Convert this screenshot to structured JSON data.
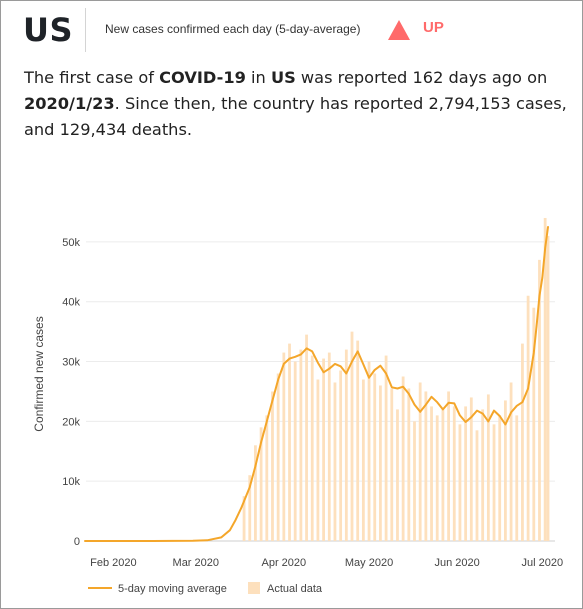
{
  "header": {
    "country": "US",
    "subtitle": "New cases confirmed each day (5-day-average)",
    "trend_label": "UP",
    "trend_color": "#ff6a6a"
  },
  "summary": {
    "p1": "The first case of ",
    "disease": "COVID-19",
    "p2": " in ",
    "country": "US",
    "p3": " was reported 162 days ago on ",
    "first_date": "2020/1/23",
    "p4": ". Since then, the country has reported 2,794,153 cases, and 129,434 deaths."
  },
  "colors": {
    "line": "#f4a62a",
    "bar": "#fde0bd",
    "grid": "#ececec",
    "axis_text": "#444444"
  },
  "chart_data": {
    "type": "line",
    "title": "",
    "xlabel": "",
    "ylabel": "Confirmed new cases",
    "x_start": "2020-01-22",
    "x_end": "2020-07-03",
    "ylim": [
      0,
      55000
    ],
    "yticks": [
      "0",
      "10k",
      "20k",
      "30k",
      "40k",
      "50k"
    ],
    "ytick_values": [
      0,
      10000,
      20000,
      30000,
      40000,
      50000
    ],
    "xticks": [
      "Feb 2020",
      "Mar 2020",
      "Apr 2020",
      "May 2020",
      "Jun 2020",
      "Jul 2020"
    ],
    "xtick_dates": [
      "2020-02-01",
      "2020-03-01",
      "2020-04-01",
      "2020-05-01",
      "2020-06-01",
      "2020-07-01"
    ],
    "legend_position": "bottom-left",
    "grid": true,
    "series": [
      {
        "name": "5-day moving average",
        "kind": "line",
        "points": [
          [
            "2020-01-22",
            0
          ],
          [
            "2020-02-15",
            0
          ],
          [
            "2020-02-29",
            30
          ],
          [
            "2020-03-05",
            120
          ],
          [
            "2020-03-10",
            600
          ],
          [
            "2020-03-13",
            1800
          ],
          [
            "2020-03-15",
            3500
          ],
          [
            "2020-03-17",
            5500
          ],
          [
            "2020-03-20",
            9000
          ],
          [
            "2020-03-22",
            12500
          ],
          [
            "2020-03-24",
            16500
          ],
          [
            "2020-03-26",
            20000
          ],
          [
            "2020-03-28",
            23500
          ],
          [
            "2020-03-30",
            27000
          ],
          [
            "2020-04-01",
            29600
          ],
          [
            "2020-04-03",
            30500
          ],
          [
            "2020-04-05",
            30800
          ],
          [
            "2020-04-07",
            31200
          ],
          [
            "2020-04-09",
            32200
          ],
          [
            "2020-04-11",
            31700
          ],
          [
            "2020-04-13",
            29800
          ],
          [
            "2020-04-15",
            28200
          ],
          [
            "2020-04-17",
            28800
          ],
          [
            "2020-04-19",
            29600
          ],
          [
            "2020-04-21",
            29200
          ],
          [
            "2020-04-23",
            28000
          ],
          [
            "2020-04-25",
            30000
          ],
          [
            "2020-04-27",
            31700
          ],
          [
            "2020-04-29",
            29500
          ],
          [
            "2020-05-01",
            27300
          ],
          [
            "2020-05-03",
            28600
          ],
          [
            "2020-05-05",
            29300
          ],
          [
            "2020-05-07",
            28000
          ],
          [
            "2020-05-09",
            25700
          ],
          [
            "2020-05-11",
            25500
          ],
          [
            "2020-05-13",
            25800
          ],
          [
            "2020-05-15",
            24600
          ],
          [
            "2020-05-17",
            22800
          ],
          [
            "2020-05-19",
            21600
          ],
          [
            "2020-05-21",
            22800
          ],
          [
            "2020-05-23",
            24100
          ],
          [
            "2020-05-25",
            23200
          ],
          [
            "2020-05-27",
            22000
          ],
          [
            "2020-05-29",
            23100
          ],
          [
            "2020-05-31",
            23000
          ],
          [
            "2020-06-02",
            21000
          ],
          [
            "2020-06-04",
            19900
          ],
          [
            "2020-06-06",
            20700
          ],
          [
            "2020-06-08",
            21800
          ],
          [
            "2020-06-10",
            21300
          ],
          [
            "2020-06-12",
            20000
          ],
          [
            "2020-06-14",
            21800
          ],
          [
            "2020-06-16",
            20900
          ],
          [
            "2020-06-18",
            19500
          ],
          [
            "2020-06-20",
            21500
          ],
          [
            "2020-06-22",
            22600
          ],
          [
            "2020-06-24",
            23200
          ],
          [
            "2020-06-26",
            25500
          ],
          [
            "2020-06-28",
            31500
          ],
          [
            "2020-06-29",
            36000
          ],
          [
            "2020-06-30",
            41000
          ],
          [
            "2020-07-01",
            44000
          ],
          [
            "2020-07-02",
            49000
          ],
          [
            "2020-07-03",
            52500
          ]
        ]
      },
      {
        "name": "Actual data",
        "kind": "bar",
        "points": [
          [
            "2020-03-18",
            7500
          ],
          [
            "2020-03-20",
            11000
          ],
          [
            "2020-03-22",
            16000
          ],
          [
            "2020-03-24",
            19000
          ],
          [
            "2020-03-26",
            21000
          ],
          [
            "2020-03-28",
            25000
          ],
          [
            "2020-03-30",
            28000
          ],
          [
            "2020-04-01",
            31500
          ],
          [
            "2020-04-03",
            33000
          ],
          [
            "2020-04-05",
            30000
          ],
          [
            "2020-04-07",
            32000
          ],
          [
            "2020-04-09",
            34500
          ],
          [
            "2020-04-11",
            31000
          ],
          [
            "2020-04-13",
            27000
          ],
          [
            "2020-04-15",
            30500
          ],
          [
            "2020-04-17",
            31500
          ],
          [
            "2020-04-19",
            26500
          ],
          [
            "2020-04-21",
            28500
          ],
          [
            "2020-04-23",
            32000
          ],
          [
            "2020-04-25",
            35000
          ],
          [
            "2020-04-27",
            33500
          ],
          [
            "2020-04-29",
            27000
          ],
          [
            "2020-05-01",
            30000
          ],
          [
            "2020-05-03",
            28000
          ],
          [
            "2020-05-05",
            26000
          ],
          [
            "2020-05-07",
            31000
          ],
          [
            "2020-05-09",
            25500
          ],
          [
            "2020-05-11",
            22000
          ],
          [
            "2020-05-13",
            27500
          ],
          [
            "2020-05-15",
            25500
          ],
          [
            "2020-05-17",
            20000
          ],
          [
            "2020-05-19",
            26500
          ],
          [
            "2020-05-21",
            25000
          ],
          [
            "2020-05-23",
            22500
          ],
          [
            "2020-05-25",
            21000
          ],
          [
            "2020-05-27",
            22000
          ],
          [
            "2020-05-29",
            25000
          ],
          [
            "2020-05-31",
            22500
          ],
          [
            "2020-06-02",
            19500
          ],
          [
            "2020-06-04",
            22500
          ],
          [
            "2020-06-06",
            24000
          ],
          [
            "2020-06-08",
            18500
          ],
          [
            "2020-06-10",
            22000
          ],
          [
            "2020-06-12",
            24500
          ],
          [
            "2020-06-14",
            19500
          ],
          [
            "2020-06-16",
            21000
          ],
          [
            "2020-06-18",
            23500
          ],
          [
            "2020-06-20",
            26500
          ],
          [
            "2020-06-22",
            21000
          ],
          [
            "2020-06-24",
            33000
          ],
          [
            "2020-06-26",
            41000
          ],
          [
            "2020-06-28",
            39000
          ],
          [
            "2020-06-30",
            47000
          ],
          [
            "2020-07-02",
            54000
          ],
          [
            "2020-07-03",
            51000
          ]
        ]
      }
    ]
  }
}
